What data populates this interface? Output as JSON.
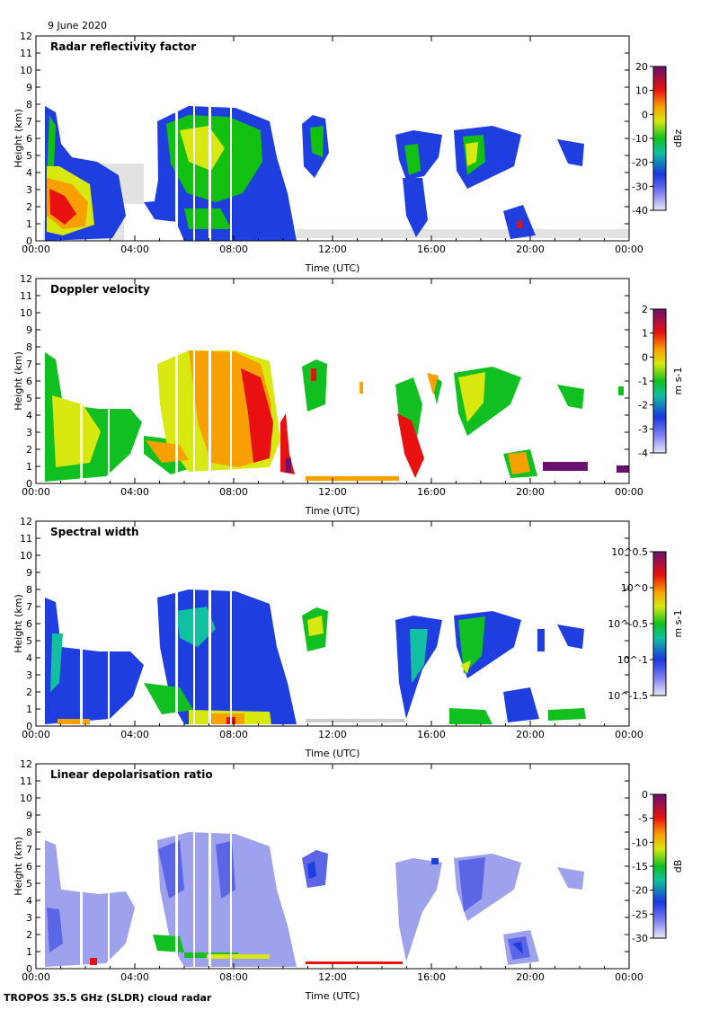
{
  "date_label": "9 June 2020",
  "footer": "TROPOS 35.5 GHz (SLDR) cloud radar",
  "chart_data": [
    {
      "type": "heatmap",
      "title": "Radar reflectivity factor",
      "xlabel": "Time (UTC)",
      "ylabel": "Height (km)",
      "xticks": [
        "00:00",
        "04:00",
        "08:00",
        "12:00",
        "16:00",
        "20:00",
        "00:00"
      ],
      "yticks": [
        "0",
        "1",
        "2",
        "3",
        "4",
        "5",
        "6",
        "7",
        "8",
        "9",
        "10",
        "11",
        "12"
      ],
      "ylim": [
        0,
        12
      ],
      "colorbar": {
        "unit": "dBz",
        "ticks": [
          "20",
          "10",
          "0",
          "-10",
          "-20",
          "-30",
          "-40"
        ]
      }
    },
    {
      "type": "heatmap",
      "title": "Doppler velocity",
      "xlabel": "Time (UTC)",
      "ylabel": "Height (km)",
      "xticks": [
        "00:00",
        "04:00",
        "08:00",
        "12:00",
        "16:00",
        "20:00",
        "00:00"
      ],
      "yticks": [
        "0",
        "1",
        "2",
        "3",
        "4",
        "5",
        "6",
        "7",
        "8",
        "9",
        "10",
        "11",
        "12"
      ],
      "ylim": [
        0,
        12
      ],
      "colorbar": {
        "unit": "m s-1",
        "ticks": [
          "2",
          "1",
          "0",
          "-1",
          "-2",
          "-3",
          "-4"
        ]
      }
    },
    {
      "type": "heatmap",
      "title": "Spectral width",
      "xlabel": "Time (UTC)",
      "ylabel": "Height (km)",
      "xticks": [
        "00:00",
        "04:00",
        "08:00",
        "12:00",
        "16:00",
        "20:00",
        "00:00"
      ],
      "yticks": [
        "0",
        "1",
        "2",
        "3",
        "4",
        "5",
        "6",
        "7",
        "8",
        "9",
        "10",
        "11",
        "12"
      ],
      "ylim": [
        0,
        12
      ],
      "colorbar": {
        "unit": "m s-1",
        "ticks": [
          "10^0.5",
          "10^0",
          "10^-0.5",
          "10^-1",
          "10^-1.5"
        ]
      }
    },
    {
      "type": "heatmap",
      "title": "Linear depolarisation ratio",
      "xlabel": "Time (UTC)",
      "ylabel": "Height (km)",
      "xticks": [
        "00:00",
        "04:00",
        "08:00",
        "12:00",
        "16:00",
        "20:00",
        "00:00"
      ],
      "yticks": [
        "0",
        "1",
        "2",
        "3",
        "4",
        "5",
        "6",
        "7",
        "8",
        "9",
        "10",
        "11",
        "12"
      ],
      "ylim": [
        0,
        12
      ],
      "colorbar": {
        "unit": "dB",
        "ticks": [
          "0",
          "-5",
          "-10",
          "-15",
          "-20",
          "-25",
          "-30"
        ]
      }
    }
  ]
}
